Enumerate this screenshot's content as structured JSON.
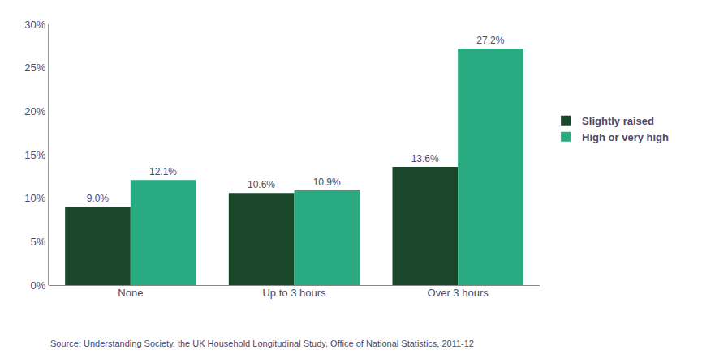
{
  "chart_data": {
    "type": "bar",
    "categories": [
      "None",
      "Up to 3 hours",
      "Over 3 hours"
    ],
    "series": [
      {
        "name": "Slightly raised",
        "color": "#1a472a",
        "values": [
          9.0,
          10.6,
          13.6
        ],
        "value_labels": [
          "9.0%",
          "10.6%",
          "13.6%"
        ]
      },
      {
        "name": "High or very high",
        "color": "#2aaa80",
        "values": [
          12.1,
          10.9,
          27.2
        ],
        "value_labels": [
          "12.1%",
          "10.9%",
          "27.2%"
        ]
      }
    ],
    "ylim": [
      0,
      30
    ],
    "yticks": [
      {
        "value": 0,
        "label": "0%"
      },
      {
        "value": 5,
        "label": "5%"
      },
      {
        "value": 10,
        "label": "10%"
      },
      {
        "value": 15,
        "label": "15%"
      },
      {
        "value": 20,
        "label": "20%"
      },
      {
        "value": 25,
        "label": "25%"
      },
      {
        "value": 30,
        "label": "30%"
      }
    ],
    "grid": false,
    "data_labels": true,
    "legend": "right",
    "annotations": [
      "Source: Understanding Society, the UK Household Longitudinal Study, Office of National Statistics, 2011-12"
    ]
  }
}
